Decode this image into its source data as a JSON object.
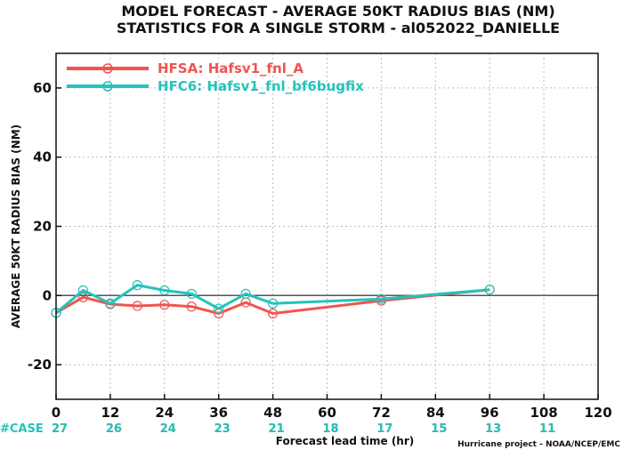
{
  "header": {
    "title_line1": "MODEL FORECAST - AVERAGE 50KT RADIUS BIAS (NM)",
    "title_line2": "STATISTICS FOR A SINGLE STORM - al052022_DANIELLE"
  },
  "footer": {
    "cases_label": "#CASE",
    "credit": "Hurricane project - NOAA/NCEP/EMC"
  },
  "colors": {
    "hfsa": "#f0544f",
    "hfc6": "#22c4bb",
    "grid": "#bdbdbd",
    "zero_line": "#555555"
  },
  "chart_data": {
    "type": "line",
    "xlabel": "Forecast lead time (hr)",
    "ylabel": "AVERAGE 50KT RADIUS BIAS (NM)",
    "xlim": [
      0,
      120
    ],
    "ylim": [
      -30,
      70
    ],
    "x_ticks": [
      0,
      12,
      24,
      36,
      48,
      60,
      72,
      84,
      96,
      108,
      120
    ],
    "y_ticks": [
      -20,
      0,
      20,
      40,
      60
    ],
    "grid": true,
    "legend_position": "top-left",
    "series": [
      {
        "name": "HFSA: Hafsv1_fnl_A",
        "color_key": "hfsa",
        "x": [
          0,
          6,
          12,
          18,
          24,
          30,
          36,
          42,
          48,
          72,
          96
        ],
        "y": [
          -5,
          -0.5,
          -2.5,
          -3,
          -2.7,
          -3.2,
          -5.2,
          -2,
          -5.2,
          -1.5,
          1.7
        ]
      },
      {
        "name": "HFC6: Hafsv1_fnl_bf6bugfix",
        "color_key": "hfc6",
        "x": [
          0,
          6,
          12,
          18,
          24,
          30,
          36,
          42,
          48,
          72,
          96
        ],
        "y": [
          -5,
          1.5,
          -2.3,
          3,
          1.5,
          0.5,
          -3.8,
          0.5,
          -2.3,
          -1,
          1.7
        ]
      }
    ],
    "case_counts": {
      "x": [
        0,
        12,
        24,
        36,
        48,
        60,
        72,
        84,
        96,
        108
      ],
      "hfsa": [
        27,
        26,
        24,
        23,
        21,
        18,
        17,
        15,
        13,
        11
      ],
      "hfc6": [
        27,
        26,
        24,
        23,
        21,
        18,
        17,
        15,
        13,
        11
      ]
    }
  }
}
